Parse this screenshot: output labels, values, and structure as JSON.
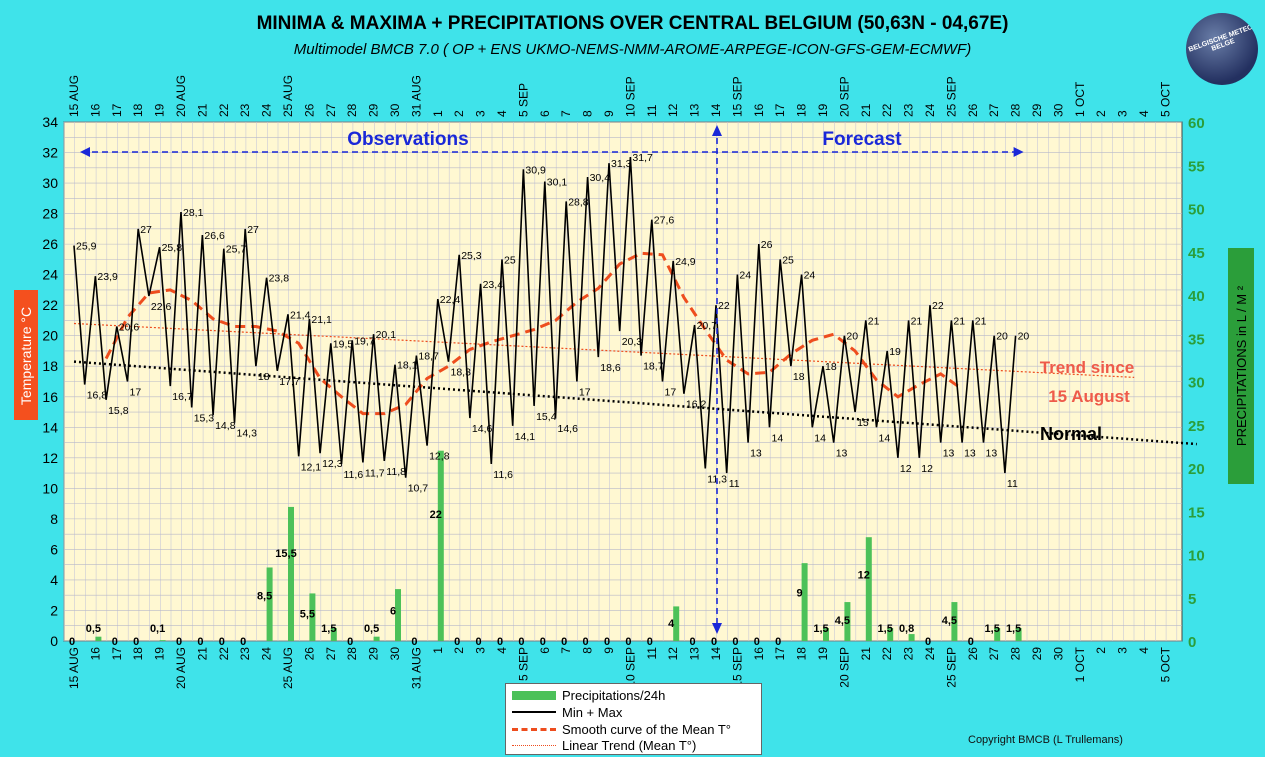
{
  "title": "MINIMA & MAXIMA + PRECIPITATIONS OVER CENTRAL BELGIUM (50,63N - 04,67E)",
  "subtitle": "Multimodel BMCB 7.0 ( OP + ENS UKMO-NEMS-NMM-AROME-ARPEGE-ICON-GFS-GEM-ECMWF)",
  "copyright": "Copyright BMCB (L Trullemans)",
  "logo_text": "BELGISCHE METEO BELGE",
  "colors": {
    "background": "#3fe3ea",
    "plot": "#fff8d2",
    "precip": "#4cc159",
    "temp": "#000000",
    "smooth": "#ee4d1e",
    "trend": "#ee4d1e",
    "normal": "#000000",
    "arrow": "#1a28d8",
    "left_axis": "#f4501e",
    "right_axis": "#2b9e3a"
  },
  "chart_data": {
    "type": "line",
    "x_categories": [
      "15 AUG",
      "16",
      "17",
      "18",
      "19",
      "20 AUG",
      "21",
      "22",
      "23",
      "24",
      "25 AUG",
      "26",
      "27",
      "28",
      "29",
      "30",
      "31 AUG",
      "1",
      "2",
      "3",
      "4",
      "5 SEP",
      "6",
      "7",
      "8",
      "9",
      "10 SEP",
      "11",
      "12",
      "13",
      "14",
      "15 SEP",
      "16",
      "17",
      "18",
      "19",
      "20 SEP",
      "21",
      "22",
      "23",
      "24",
      "25 SEP",
      "26",
      "27",
      "28",
      "29",
      "30",
      "1 OCT",
      "2",
      "3",
      "4",
      "5 OCT"
    ],
    "y_left": {
      "label": "Temperature   °C",
      "min": 0,
      "max": 34,
      "step": 2
    },
    "y_right": {
      "label": "PRECIPITATIONS in L / M ²",
      "min": 0,
      "max": 60,
      "step": 5
    },
    "minmax": {
      "name": "Min + Max",
      "day_index": [
        0,
        0.5,
        1,
        1.5,
        2,
        2.5,
        3,
        3.5,
        4,
        4.5,
        5,
        5.5,
        6,
        6.5,
        7,
        7.5,
        8,
        8.5,
        9,
        9.5,
        10,
        10.5,
        11,
        11.5,
        12,
        12.5,
        13,
        13.5,
        14,
        14.5,
        15,
        15.5,
        16,
        16.5,
        17,
        17.5,
        18,
        18.5,
        19,
        19.5,
        20,
        20.5,
        21,
        21.5,
        22,
        22.5,
        23,
        23.5,
        24,
        24.5,
        25,
        25.5,
        26,
        26.5,
        27,
        27.5,
        28,
        28.5,
        29,
        29.5,
        30,
        30.5,
        31,
        31.5,
        32,
        32.5,
        33,
        33.5,
        34,
        34.5,
        35,
        35.5,
        36,
        36.5,
        37,
        37.5,
        38,
        38.5,
        39,
        39.5,
        40,
        40.5,
        41,
        41.5,
        42,
        42.5,
        43,
        43.5,
        44,
        44.5,
        45,
        45.5,
        46,
        46.5,
        47
      ],
      "values": [
        25.9,
        16.8,
        23.9,
        15.8,
        20.6,
        17,
        27,
        22.6,
        25.8,
        16.7,
        28.1,
        15.3,
        26.6,
        14.8,
        25.7,
        14.3,
        27,
        18,
        23.8,
        17.7,
        21.4,
        12.1,
        21.1,
        12.3,
        19.5,
        11.6,
        19.7,
        11.7,
        20.1,
        11.8,
        18.1,
        10.7,
        18.7,
        12.8,
        22.4,
        18.3,
        25.3,
        14.6,
        23.4,
        11.6,
        25,
        14.1,
        30.9,
        15.4,
        30.1,
        14.6,
        28.8,
        17,
        30.4,
        18.6,
        31.3,
        20.3,
        31.7,
        18.7,
        27.6,
        17,
        24.9,
        16.2,
        20.7,
        11.3,
        22,
        11,
        24,
        13,
        26,
        14,
        25,
        18,
        24,
        14,
        18,
        13,
        20,
        15,
        21,
        14,
        19,
        12,
        21,
        12,
        22,
        13,
        21,
        13,
        21,
        13,
        20,
        11,
        20
      ],
      "labels": [
        "25,9",
        "16,8",
        "23,9",
        "15,8",
        "20,6",
        "17",
        "27",
        "22,6",
        "25,8",
        "16,7",
        "28,1",
        "15,3",
        "26,6",
        "14,8",
        "25,7",
        "14,3",
        "27",
        "18",
        "23,8",
        "17,7",
        "21,4",
        "12,1",
        "21,1",
        "12,3",
        "19,5",
        "11,6",
        "19,7",
        "11,7",
        "20,1",
        "11,8",
        "18,1",
        "10,7",
        "18,7",
        "12,8",
        "22,4",
        "18,3",
        "25,3",
        "14,6",
        "23,4",
        "11,6",
        "25",
        "14,1",
        "30,9",
        "15,4",
        "30,1",
        "14,6",
        "28,8",
        "17",
        "30,4",
        "18,6",
        "31,3",
        "20,3",
        "31,7",
        "18,7",
        "27,6",
        "17",
        "24,9",
        "16,2",
        "20,7",
        "11,3",
        "22",
        "11",
        "24",
        "13",
        "26",
        "14",
        "25",
        "18",
        "24",
        "14",
        "18",
        "13",
        "20",
        "15",
        "21",
        "14",
        "19",
        "12",
        "21",
        "12",
        "22",
        "13",
        "21",
        "13",
        "21",
        "13",
        "20",
        "11",
        "20"
      ]
    },
    "smooth_mean": {
      "name": "Smooth curve of the Mean T°",
      "day_index": [
        1.5,
        2.5,
        3.5,
        4.5,
        5.5,
        6.5,
        7.5,
        8.5,
        9.5,
        10.5,
        11.5,
        12.5,
        13.5,
        14.5,
        15.5,
        16.5,
        17.5,
        18.5,
        19.5,
        20.5,
        21.5,
        22.5,
        23.5,
        24.5,
        25.5,
        26.5,
        27.5,
        28.5,
        29.5,
        30.5,
        31.5,
        32.5,
        33.5,
        34.5,
        35.5,
        36.5,
        37.5,
        38.5,
        39.5,
        40.5,
        41.5
      ],
      "values": [
        18.5,
        21.2,
        22.8,
        23,
        22.3,
        21.1,
        20.6,
        20.6,
        20.3,
        19.5,
        17.2,
        16,
        14.9,
        14.9,
        15.5,
        17.2,
        18,
        19.1,
        19.6,
        20,
        20.4,
        21,
        22.2,
        23.1,
        24.7,
        25.4,
        25.3,
        22.5,
        20.4,
        18.4,
        17.5,
        17.6,
        18.8,
        19.7,
        20.1,
        19,
        17.1,
        16,
        16.8,
        17.5,
        16.5
      ]
    },
    "linear_trend": {
      "name": "Linear Trend  (Mean T°)",
      "x": [
        0,
        43
      ],
      "y": [
        20.8,
        17.4
      ],
      "annotation": [
        "Trend since",
        "15 August"
      ]
    },
    "normal": {
      "name": "Normal",
      "x": [
        0,
        52
      ],
      "y": [
        18.3,
        12.9
      ]
    },
    "precipitation": {
      "name": "Precipitations/24h",
      "day_index": [
        0,
        1,
        2,
        3,
        4,
        5,
        6,
        7,
        8,
        9,
        10,
        11,
        12,
        13,
        14,
        15,
        16,
        17,
        18,
        19,
        20,
        21,
        22,
        23,
        24,
        25,
        26,
        27,
        28,
        29,
        30,
        31,
        32,
        33,
        34,
        35,
        36,
        37,
        38,
        39,
        40,
        41,
        42,
        43,
        44
      ],
      "values": [
        0,
        0.5,
        0,
        0,
        0.1,
        0,
        0,
        0,
        0,
        8.5,
        15.5,
        5.5,
        1.5,
        0,
        0.5,
        6,
        0,
        22,
        0,
        0,
        0,
        0,
        0,
        0,
        0,
        0,
        0,
        0,
        4,
        0,
        0,
        0,
        0,
        0,
        9,
        1.5,
        4.5,
        12,
        1.5,
        0.8,
        0,
        4.5,
        0,
        1.5,
        1.5
      ],
      "labels": [
        "0",
        "0,5",
        "0",
        "0",
        "0,1",
        "0",
        "0",
        "0",
        "0",
        "8,5",
        "15,5",
        "5,5",
        "1,5",
        "0",
        "0,5",
        "6",
        "0",
        "22",
        "0",
        "0",
        "0",
        "0",
        "0",
        "0",
        "0",
        "0",
        "0",
        "0",
        "4",
        "0",
        "0",
        "0",
        "0",
        "0",
        "9",
        "1,5",
        "4,5",
        "12",
        "1,5",
        "0,8",
        "0",
        "4,5",
        "0",
        "1,5",
        "1,5"
      ]
    },
    "regions": [
      {
        "label": "Observations",
        "from": 0,
        "to": 30
      },
      {
        "label": "Forecast",
        "from": 30,
        "to": 44
      }
    ],
    "split_day_index": 30,
    "grid": true,
    "legend_position": "bottom-center"
  }
}
